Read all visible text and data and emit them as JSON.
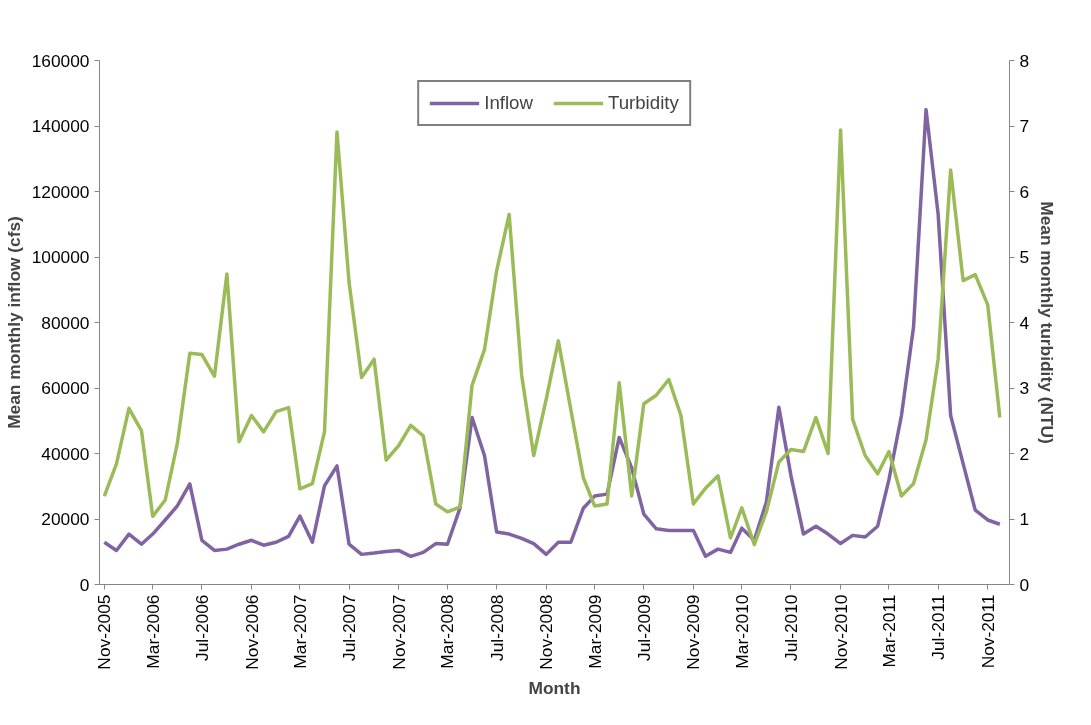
{
  "chart_data": {
    "type": "line",
    "xlabel": "Month",
    "ylabel": "Mean monthly inflow (cfs)",
    "y2label": "Mean monthly turbidity (NTU)",
    "x": [
      "2005-11",
      "2005-12",
      "2006-01",
      "2006-02",
      "2006-03",
      "2006-04",
      "2006-05",
      "2006-06",
      "2006-07",
      "2006-08",
      "2006-09",
      "2006-10",
      "2006-11",
      "2006-12",
      "2007-01",
      "2007-02",
      "2007-03",
      "2007-04",
      "2007-05",
      "2007-06",
      "2007-07",
      "2007-08",
      "2007-09",
      "2007-10",
      "2007-11",
      "2007-12",
      "2008-01",
      "2008-02",
      "2008-03",
      "2008-04",
      "2008-05",
      "2008-06",
      "2008-07",
      "2008-08",
      "2008-09",
      "2008-10",
      "2008-11",
      "2008-12",
      "2009-01",
      "2009-02",
      "2009-03",
      "2009-04",
      "2009-05",
      "2009-06",
      "2009-07",
      "2009-08",
      "2009-09",
      "2009-10",
      "2009-11",
      "2009-12",
      "2010-01",
      "2010-02",
      "2010-03",
      "2010-04",
      "2010-05",
      "2010-06",
      "2010-07",
      "2010-08",
      "2010-09",
      "2010-10",
      "2010-11",
      "2010-12",
      "2011-01",
      "2011-02",
      "2011-03",
      "2011-04",
      "2011-05",
      "2011-06",
      "2011-07",
      "2011-08",
      "2011-09",
      "2011-10",
      "2011-11",
      "2011-12"
    ],
    "series": [
      {
        "name": "Inflow",
        "color": "#8064a2",
        "values": [
          12900,
          10400,
          15400,
          12300,
          15400,
          19700,
          24000,
          30700,
          13500,
          10400,
          10800,
          12300,
          13500,
          12000,
          12900,
          14700,
          20900,
          12900,
          30100,
          36200,
          12300,
          9200,
          9600,
          10100,
          10400,
          8600,
          9800,
          12500,
          12300,
          23300,
          51000,
          39300,
          16000,
          15400,
          14100,
          12500,
          9200,
          12900,
          12900,
          23300,
          27000,
          27600,
          44900,
          35600,
          21500,
          17000,
          16500,
          16500,
          16500,
          8600,
          10800,
          9800,
          17200,
          13500,
          25200,
          54100,
          33200,
          15400,
          17800,
          15400,
          12500,
          15000,
          14500,
          17800,
          32000,
          51600,
          78600,
          145000,
          113100,
          51600,
          36900,
          22700,
          19700,
          18400
        ]
      },
      {
        "name": "Turbidity",
        "color": "#9bbb59",
        "axis": "y2",
        "values": [
          1.35,
          1.84,
          2.69,
          2.35,
          1.04,
          1.29,
          2.15,
          3.53,
          3.51,
          3.18,
          4.74,
          2.18,
          2.58,
          2.33,
          2.64,
          2.7,
          1.46,
          1.54,
          2.33,
          6.91,
          4.61,
          3.16,
          3.44,
          1.9,
          2.12,
          2.43,
          2.27,
          1.23,
          1.11,
          1.18,
          3.04,
          3.59,
          4.79,
          5.65,
          3.2,
          1.97,
          2.83,
          3.72,
          2.67,
          1.63,
          1.2,
          1.23,
          3.08,
          1.35,
          2.76,
          2.89,
          3.13,
          2.58,
          1.23,
          1.47,
          1.66,
          0.71,
          1.17,
          0.61,
          1.11,
          1.87,
          2.06,
          2.03,
          2.55,
          2.0,
          6.94,
          2.52,
          1.97,
          1.69,
          2.03,
          1.35,
          1.54,
          2.21,
          3.44,
          6.33,
          4.64,
          4.73,
          4.27,
          2.55
        ]
      }
    ],
    "xlim": [
      "2005-10-20",
      "2011-12-25"
    ],
    "xticks": [
      {
        "value": "2005-11",
        "label": "Nov-2005"
      },
      {
        "value": "2006-03",
        "label": "Mar-2006"
      },
      {
        "value": "2006-07",
        "label": "Jul-2006"
      },
      {
        "value": "2006-11",
        "label": "Nov-2006"
      },
      {
        "value": "2007-03",
        "label": "Mar-2007"
      },
      {
        "value": "2007-07",
        "label": "Jul-2007"
      },
      {
        "value": "2007-11",
        "label": "Nov-2007"
      },
      {
        "value": "2008-03",
        "label": "Mar-2008"
      },
      {
        "value": "2008-07",
        "label": "Jul-2008"
      },
      {
        "value": "2008-11",
        "label": "Nov-2008"
      },
      {
        "value": "2009-03",
        "label": "Mar-2009"
      },
      {
        "value": "2009-07",
        "label": "Jul-2009"
      },
      {
        "value": "2009-11",
        "label": "Nov-2009"
      },
      {
        "value": "2010-03",
        "label": "Mar-2010"
      },
      {
        "value": "2010-07",
        "label": "Jul-2010"
      },
      {
        "value": "2010-11",
        "label": "Nov-2010"
      },
      {
        "value": "2011-03",
        "label": "Mar-2011"
      },
      {
        "value": "2011-07",
        "label": "Jul-2011"
      },
      {
        "value": "2011-11",
        "label": "Nov-2011"
      }
    ],
    "ylim": [
      0,
      160000
    ],
    "yticks": [
      0,
      20000,
      40000,
      60000,
      80000,
      100000,
      120000,
      140000,
      160000
    ],
    "y2lim": [
      0,
      8
    ],
    "y2ticks": [
      0,
      1,
      2,
      3,
      4,
      5,
      6,
      7,
      8
    ],
    "grid": false,
    "legend": "top",
    "marker": "none",
    "line_style": "solid"
  }
}
